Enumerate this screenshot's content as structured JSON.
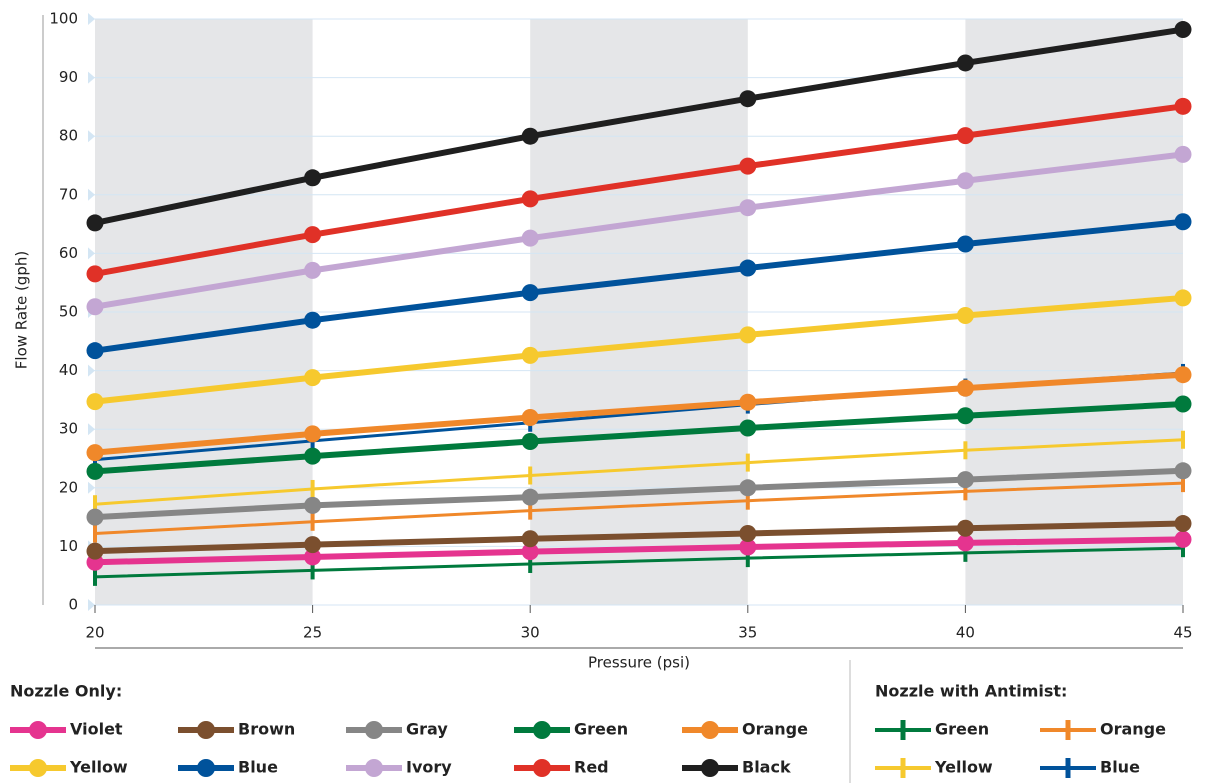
{
  "chart_data": {
    "type": "line",
    "x_label": "Pressure (psi)",
    "y_label": "Flow Rate (gph)",
    "x": [
      20,
      25,
      30,
      35,
      40,
      45
    ],
    "xlim": [
      20,
      45
    ],
    "xticks": [
      20,
      25,
      30,
      35,
      40,
      45
    ],
    "ylim": [
      0,
      100
    ],
    "yticks": [
      0,
      10,
      20,
      30,
      40,
      50,
      60,
      70,
      80,
      90,
      100
    ],
    "grid": true,
    "legend_groups": [
      {
        "title": "Nozzle Only:",
        "marker": "circle",
        "series": [
          {
            "name": "Violet",
            "color": "#e5348f",
            "values": [
              7.3,
              8.2,
              9.1,
              9.9,
              10.6,
              11.2
            ]
          },
          {
            "name": "Brown",
            "color": "#7b4f2e",
            "values": [
              9.2,
              10.3,
              11.3,
              12.2,
              13.1,
              13.9
            ]
          },
          {
            "name": "Gray",
            "color": "#868686",
            "values": [
              15,
              17,
              18.4,
              20,
              21.4,
              22.9
            ]
          },
          {
            "name": "Green",
            "color": "#007a3d",
            "values": [
              22.8,
              25.4,
              27.9,
              30.2,
              32.3,
              34.3
            ]
          },
          {
            "name": "Orange",
            "color": "#f0882a",
            "values": [
              26,
              29.2,
              32,
              34.6,
              37,
              39.3
            ]
          },
          {
            "name": "Yellow",
            "color": "#f6c92e",
            "values": [
              34.7,
              38.8,
              42.6,
              46.1,
              49.4,
              52.4
            ]
          },
          {
            "name": "Blue",
            "color": "#00529b",
            "values": [
              43.4,
              48.6,
              53.3,
              57.5,
              61.6,
              65.4
            ]
          },
          {
            "name": "Ivory",
            "color": "#c3a6d3",
            "values": [
              50.9,
              57.1,
              62.6,
              67.8,
              72.4,
              76.9
            ]
          },
          {
            "name": "Red",
            "color": "#e03127",
            "values": [
              56.5,
              63.2,
              69.3,
              74.9,
              80.1,
              85.1
            ]
          },
          {
            "name": "Black",
            "color": "#1f1f1f",
            "values": [
              65.2,
              72.9,
              80,
              86.4,
              92.5,
              98.2
            ]
          }
        ]
      },
      {
        "title": "Nozzle with Antimist:",
        "marker": "cross",
        "series": [
          {
            "name": "Green",
            "color": "#007a3d",
            "values": [
              4.8,
              5.9,
              7,
              8,
              8.9,
              9.7
            ]
          },
          {
            "name": "Orange",
            "color": "#f0882a",
            "values": [
              12.2,
              14.2,
              16.1,
              17.8,
              19.4,
              20.8
            ]
          },
          {
            "name": "Yellow",
            "color": "#f6c92e",
            "values": [
              17.2,
              19.8,
              22.1,
              24.3,
              26.4,
              28.2
            ]
          },
          {
            "name": "Blue",
            "color": "#00529b",
            "values": [
              24.8,
              28,
              31.1,
              34.2,
              37.1,
              39.6
            ]
          }
        ]
      }
    ]
  }
}
